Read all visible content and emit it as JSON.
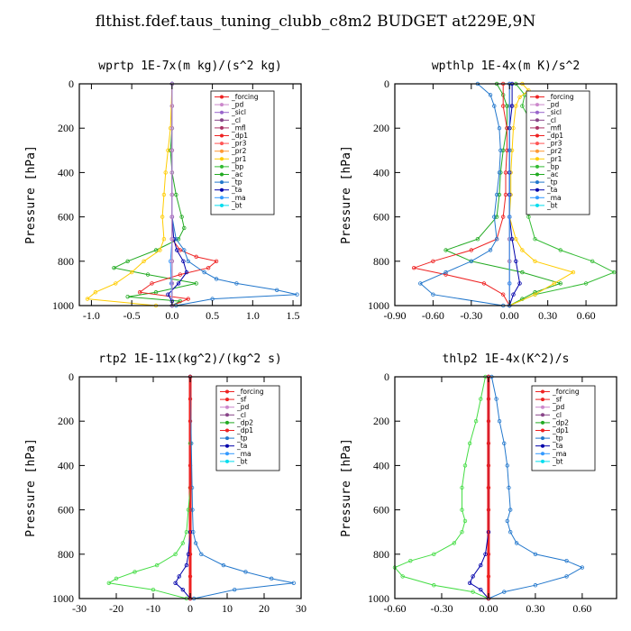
{
  "title": "flthist.fdef.taus_tuning_clubb_c8m2  BUDGET at229E,9N",
  "chart_data": [
    {
      "type": "line",
      "title": "wprtp   1E-7x(m kg)/(s^2 kg)",
      "ylabel": "Pressure [hPa]",
      "xlim": [
        -1.15,
        1.6
      ],
      "ylim": [
        1000,
        0
      ],
      "xticks": [
        -1.0,
        -0.5,
        0.0,
        0.5,
        1.0,
        1.5
      ],
      "xtick_labels": [
        "-1.0",
        "-0.5",
        "0.0",
        "0.5",
        "1.0",
        "1.5"
      ],
      "yticks": [
        0,
        200,
        400,
        600,
        800,
        1000
      ],
      "ytick_labels": [
        "0",
        "200",
        "400",
        "600",
        "800",
        "1000"
      ],
      "legend": [
        "_forcing",
        "_pd",
        "_sicl",
        "_cl",
        "_mfl",
        "_dp1",
        "_pr3",
        "_pr2",
        "_pr1",
        "_bp",
        "_ac",
        "_tp",
        "_ta",
        "_ma",
        "_bt"
      ],
      "series": [
        {
          "name": "_forcing",
          "color": "#000000",
          "pressure": [
            0,
            100,
            200,
            300,
            400,
            500,
            600,
            700,
            800,
            900,
            1000
          ],
          "values": [
            0,
            0,
            0,
            0,
            0,
            0,
            0,
            0,
            0,
            0,
            0
          ]
        },
        {
          "name": "_ac",
          "color": "#22aa22",
          "pressure": [
            0,
            200,
            300,
            400,
            500,
            600,
            650,
            700,
            750,
            800,
            830,
            860,
            900,
            940,
            960,
            980,
            1000
          ],
          "values": [
            0,
            0,
            -0.02,
            0,
            0.05,
            0.12,
            0.15,
            0.08,
            -0.2,
            -0.55,
            -0.72,
            -0.3,
            0.3,
            -0.2,
            -0.55,
            0.1,
            0
          ]
        },
        {
          "name": "_pr1",
          "color": "#ffcc00",
          "pressure": [
            0,
            200,
            300,
            400,
            500,
            600,
            700,
            750,
            800,
            850,
            900,
            940,
            970,
            1000
          ],
          "values": [
            0,
            -0.02,
            -0.05,
            -0.08,
            -0.1,
            -0.12,
            -0.1,
            -0.15,
            -0.35,
            -0.5,
            -0.7,
            -0.95,
            -1.05,
            -0.2
          ]
        },
        {
          "name": "_dp1",
          "color": "#ee2222",
          "pressure": [
            0,
            600,
            700,
            750,
            780,
            800,
            830,
            860,
            900,
            940,
            970,
            1000
          ],
          "values": [
            0,
            0,
            0,
            0.1,
            0.3,
            0.55,
            0.45,
            0.1,
            -0.25,
            -0.4,
            0.2,
            0
          ]
        },
        {
          "name": "_tp",
          "color": "#2277cc",
          "pressure": [
            0,
            600,
            700,
            750,
            800,
            850,
            880,
            900,
            930,
            950,
            970,
            1000
          ],
          "values": [
            0,
            0,
            0.05,
            0.15,
            0.2,
            0.4,
            0.55,
            0.8,
            1.3,
            1.55,
            0.5,
            0.05
          ]
        },
        {
          "name": "_ta",
          "color": "#0000aa",
          "pressure": [
            0,
            600,
            700,
            750,
            800,
            850,
            900,
            950,
            980,
            1000
          ],
          "values": [
            0,
            0,
            0.02,
            0.06,
            0.14,
            0.18,
            0.08,
            -0.05,
            0,
            0
          ]
        },
        {
          "name": "_ma",
          "color": "#3399ff",
          "pressure": [
            0,
            700,
            800,
            900,
            1000
          ],
          "values": [
            0,
            0,
            -0.02,
            -0.01,
            0
          ]
        },
        {
          "name": "_pd",
          "color": "#cc88cc",
          "pressure": [
            0,
            100,
            200,
            300,
            400,
            500,
            600,
            700,
            800,
            900,
            1000
          ],
          "values": [
            0,
            0,
            0,
            0,
            0,
            0,
            0,
            0,
            0,
            0,
            0
          ]
        }
      ]
    },
    {
      "type": "line",
      "title": "wpthlp   1E-4x(m K)/s^2",
      "ylabel": "Pressure [hPa]",
      "xlim": [
        -0.9,
        0.84
      ],
      "ylim": [
        1000,
        0
      ],
      "xticks": [
        -0.9,
        -0.6,
        -0.3,
        0.0,
        0.3,
        0.6
      ],
      "xtick_labels": [
        "-0.90",
        "-0.60",
        "-0.30",
        "0.00",
        "0.30",
        "0.60"
      ],
      "yticks": [
        0,
        200,
        400,
        600,
        800,
        1000
      ],
      "ytick_labels": [
        "0",
        "200",
        "400",
        "600",
        "800",
        "1000"
      ],
      "legend": [
        "_forcing",
        "_pd",
        "_sicl",
        "_cl",
        "_mfl",
        "_dp1",
        "_pr3",
        "_pr2",
        "_pr1",
        "_bp",
        "_ac",
        "_tp",
        "_ta",
        "_ma",
        "_bt"
      ],
      "series": [
        {
          "name": "_forcing",
          "color": "#000000",
          "pressure": [
            0,
            100,
            200,
            300,
            400,
            500,
            600,
            700,
            800,
            900,
            1000
          ],
          "values": [
            0,
            0,
            0,
            0,
            0,
            0,
            0,
            0,
            0,
            0,
            0
          ]
        },
        {
          "name": "_pd",
          "color": "#cc88cc",
          "pressure": [
            0,
            100,
            200,
            300,
            400,
            500,
            600,
            700,
            800,
            900,
            1000
          ],
          "values": [
            0,
            0,
            0,
            0,
            0,
            0,
            0,
            0,
            0,
            0,
            0
          ]
        },
        {
          "name": "_ac",
          "color": "#22aa22",
          "pressure": [
            0,
            50,
            100,
            200,
            300,
            400,
            500,
            600,
            700,
            750,
            800,
            850,
            900,
            940,
            970,
            1000
          ],
          "values": [
            -0.1,
            -0.05,
            -0.02,
            -0.02,
            -0.05,
            -0.07,
            -0.08,
            -0.1,
            -0.25,
            -0.5,
            -0.3,
            0.1,
            0.4,
            0.2,
            0.1,
            0
          ]
        },
        {
          "name": "_bp",
          "color": "#33bb33",
          "pressure": [
            0,
            50,
            100,
            200,
            300,
            400,
            500,
            600,
            700,
            750,
            800,
            850,
            900,
            950,
            1000
          ],
          "values": [
            0.05,
            0.12,
            0.1,
            0.2,
            0.25,
            0.22,
            0.18,
            0.15,
            0.2,
            0.4,
            0.65,
            0.82,
            0.6,
            0.2,
            0
          ]
        },
        {
          "name": "_pr1",
          "color": "#ffcc00",
          "pressure": [
            0,
            30,
            60,
            100,
            200,
            300,
            400,
            500,
            600,
            700,
            750,
            800,
            850,
            900,
            950,
            1000
          ],
          "values": [
            0.1,
            0.15,
            0.08,
            0.05,
            0.03,
            0.02,
            0.01,
            0.01,
            0,
            0.05,
            0.1,
            0.2,
            0.5,
            0.35,
            0.2,
            0
          ]
        },
        {
          "name": "_dp1",
          "color": "#ee2222",
          "pressure": [
            0,
            100,
            200,
            300,
            400,
            500,
            600,
            700,
            750,
            800,
            830,
            860,
            900,
            950,
            1000
          ],
          "values": [
            -0.05,
            -0.05,
            -0.02,
            -0.02,
            -0.03,
            -0.03,
            -0.05,
            -0.1,
            -0.3,
            -0.6,
            -0.75,
            -0.5,
            -0.2,
            -0.05,
            0
          ]
        },
        {
          "name": "_tp",
          "color": "#2277cc",
          "pressure": [
            0,
            50,
            100,
            200,
            300,
            400,
            500,
            600,
            700,
            750,
            800,
            850,
            900,
            950,
            1000
          ],
          "values": [
            -0.25,
            -0.15,
            -0.12,
            -0.08,
            -0.07,
            -0.08,
            -0.1,
            -0.12,
            -0.1,
            -0.15,
            -0.3,
            -0.5,
            -0.7,
            -0.6,
            -0.05
          ]
        },
        {
          "name": "_ta",
          "color": "#0000aa",
          "pressure": [
            0,
            100,
            200,
            300,
            400,
            500,
            600,
            700,
            800,
            900,
            950,
            1000
          ],
          "values": [
            0.02,
            0.02,
            0,
            0,
            0,
            0,
            0,
            0.02,
            0.05,
            0.08,
            0.03,
            0
          ]
        },
        {
          "name": "_ma",
          "color": "#3399ff",
          "pressure": [
            0,
            300,
            600,
            900,
            1000
          ],
          "values": [
            0,
            0,
            0,
            0,
            0
          ]
        }
      ]
    },
    {
      "type": "line",
      "title": "rtp2   1E-11x(kg^2)/(kg^2 s)",
      "ylabel": "Pressure [hPa]",
      "xlim": [
        -30,
        30
      ],
      "ylim": [
        1000,
        0
      ],
      "xticks": [
        -30,
        -20,
        -10,
        0,
        10,
        20,
        30
      ],
      "xtick_labels": [
        "-30",
        "-20",
        "-10",
        "0",
        "10",
        "20",
        "30"
      ],
      "yticks": [
        0,
        200,
        400,
        600,
        800,
        1000
      ],
      "ytick_labels": [
        "0",
        "200",
        "400",
        "600",
        "800",
        "1000"
      ],
      "legend": [
        "_forcing",
        "_sf",
        "_pd",
        "_cl",
        "_dp2",
        "_dp1",
        "_tp",
        "_ta",
        "_ma",
        "_bt"
      ],
      "series": [
        {
          "name": "_forcing",
          "color": "#ee2222",
          "pressure": [
            0,
            100,
            200,
            300,
            400,
            500,
            600,
            700,
            800,
            900,
            1000
          ],
          "values": [
            0,
            0,
            0,
            0,
            0,
            0,
            0,
            0,
            0,
            0,
            0
          ]
        },
        {
          "name": "_dp1",
          "color": "#44dd44",
          "pressure": [
            0,
            300,
            500,
            600,
            700,
            750,
            800,
            850,
            880,
            910,
            930,
            960,
            1000
          ],
          "values": [
            0,
            0,
            0,
            -0.5,
            -1,
            -2,
            -4,
            -9,
            -15,
            -20,
            -22,
            -10,
            -1
          ]
        },
        {
          "name": "_tp",
          "color": "#2277cc",
          "pressure": [
            0,
            300,
            500,
            600,
            700,
            750,
            800,
            850,
            880,
            910,
            930,
            960,
            1000
          ],
          "values": [
            0,
            0.3,
            0.5,
            0.6,
            0.8,
            1.5,
            3,
            9,
            15,
            22,
            28,
            12,
            1
          ]
        },
        {
          "name": "_ta",
          "color": "#0000aa",
          "pressure": [
            0,
            700,
            800,
            850,
            900,
            930,
            960,
            1000
          ],
          "values": [
            0,
            0,
            -0.5,
            -1,
            -3,
            -4,
            -2,
            0
          ]
        },
        {
          "name": "_sf",
          "color": "#ee2222",
          "pressure": [
            0,
            500,
            1000
          ],
          "values": [
            0,
            0,
            0
          ]
        }
      ]
    },
    {
      "type": "line",
      "title": "thlp2   1E-4x(K^2)/s",
      "ylabel": "Pressure [hPa]",
      "xlim": [
        -0.6,
        0.82
      ],
      "ylim": [
        1000,
        0
      ],
      "xticks": [
        -0.6,
        -0.3,
        0.0,
        0.3,
        0.6
      ],
      "xtick_labels": [
        "-0.60",
        "-0.30",
        "0.00",
        "0.30",
        "0.60"
      ],
      "yticks": [
        0,
        200,
        400,
        600,
        800,
        1000
      ],
      "ytick_labels": [
        "0",
        "200",
        "400",
        "600",
        "800",
        "1000"
      ],
      "legend": [
        "_forcing",
        "_sf",
        "_pd",
        "_cl",
        "_dp2",
        "_dp1",
        "_tp",
        "_ta",
        "_ma",
        "_bt"
      ],
      "series": [
        {
          "name": "_forcing",
          "color": "#ee2222",
          "pressure": [
            0,
            100,
            200,
            300,
            400,
            500,
            600,
            700,
            800,
            900,
            1000
          ],
          "values": [
            0,
            0,
            0,
            0,
            0,
            0,
            0,
            0,
            0,
            0,
            0
          ]
        },
        {
          "name": "_dp1",
          "color": "#44dd44",
          "pressure": [
            0,
            100,
            200,
            300,
            400,
            500,
            600,
            650,
            700,
            750,
            800,
            830,
            860,
            900,
            940,
            970,
            1000
          ],
          "values": [
            -0.02,
            -0.05,
            -0.08,
            -0.12,
            -0.15,
            -0.17,
            -0.17,
            -0.15,
            -0.17,
            -0.22,
            -0.35,
            -0.5,
            -0.6,
            -0.55,
            -0.35,
            -0.1,
            0
          ]
        },
        {
          "name": "_tp",
          "color": "#2277cc",
          "pressure": [
            0,
            100,
            200,
            300,
            400,
            500,
            600,
            650,
            700,
            750,
            800,
            830,
            860,
            900,
            940,
            970,
            1000
          ],
          "values": [
            0.02,
            0.05,
            0.07,
            0.1,
            0.12,
            0.13,
            0.14,
            0.12,
            0.14,
            0.18,
            0.3,
            0.5,
            0.6,
            0.5,
            0.3,
            0.1,
            0
          ]
        },
        {
          "name": "_ta",
          "color": "#0000aa",
          "pressure": [
            0,
            700,
            800,
            850,
            900,
            930,
            960,
            1000
          ],
          "values": [
            0,
            0,
            -0.02,
            -0.05,
            -0.1,
            -0.12,
            -0.05,
            0
          ]
        },
        {
          "name": "_sf",
          "color": "#ee2222",
          "pressure": [
            0,
            500,
            1000
          ],
          "values": [
            0,
            0,
            0
          ]
        }
      ]
    }
  ]
}
